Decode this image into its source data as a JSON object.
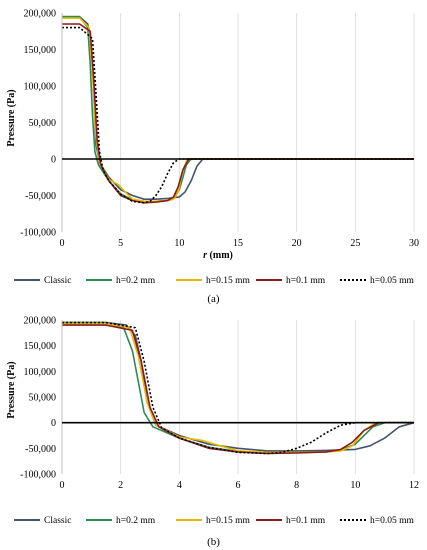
{
  "legend": [
    {
      "name": "Classic",
      "color": "#44546a",
      "dash": ""
    },
    {
      "name": "h=0.2 mm",
      "color": "#2e8b57",
      "dash": ""
    },
    {
      "name": "h=0.15 mm",
      "color": "#e6b800",
      "dash": ""
    },
    {
      "name": "h=0.1 mm",
      "color": "#8b1a1a",
      "dash": ""
    },
    {
      "name": "h=0.05 mm",
      "color": "#000000",
      "dash": "2,2"
    }
  ],
  "chart_data": [
    {
      "type": "line",
      "panel_label": "(a)",
      "ylabel": "Pressure (Pa)",
      "xlabel": "r (mm)",
      "xlim": [
        0,
        30
      ],
      "ylim": [
        -100000,
        200000
      ],
      "x_ticks": [
        0,
        5,
        10,
        15,
        20,
        25,
        30
      ],
      "y_ticks": [
        200000,
        150000,
        100000,
        50000,
        0,
        -50000,
        -100000
      ],
      "y_tick_labels": [
        "200,000",
        "150,000",
        "100,000",
        "50,000",
        "0",
        "-50,000",
        "-100,000"
      ],
      "grid": "vertical",
      "legend_position": "bottom",
      "series": [
        {
          "name": "Classic",
          "x": [
            0,
            1.5,
            2.2,
            2.5,
            2.7,
            2.9,
            3.2,
            4,
            5,
            6,
            7,
            8,
            9,
            10,
            10.5,
            11,
            11.5,
            12,
            13,
            30
          ],
          "y": [
            195000,
            195000,
            185000,
            150000,
            90000,
            20000,
            -5000,
            -25000,
            -42000,
            -50000,
            -55000,
            -55000,
            -54000,
            -52000,
            -45000,
            -30000,
            -10000,
            0,
            0,
            0
          ]
        },
        {
          "name": "h=0.2 mm",
          "x": [
            0,
            1.5,
            2.2,
            2.4,
            2.6,
            2.8,
            3.1,
            4,
            5,
            6,
            7,
            8,
            9,
            9.5,
            10,
            10.3,
            10.6,
            11,
            30
          ],
          "y": [
            195000,
            195000,
            180000,
            130000,
            60000,
            10000,
            -8000,
            -30000,
            -48000,
            -56000,
            -58000,
            -58000,
            -57000,
            -53000,
            -42000,
            -25000,
            -8000,
            0,
            0
          ]
        },
        {
          "name": "h=0.15 mm",
          "x": [
            0,
            1.5,
            2.3,
            2.6,
            2.9,
            3.2,
            4,
            4.8,
            5.2,
            6,
            7,
            8,
            9,
            9.5,
            9.9,
            10.3,
            10.7,
            30
          ],
          "y": [
            193000,
            193000,
            180000,
            120000,
            30000,
            -5000,
            -28000,
            -35000,
            -42000,
            -55000,
            -58000,
            -58000,
            -57000,
            -55000,
            -45000,
            -15000,
            0,
            0
          ]
        },
        {
          "name": "h=0.1 mm",
          "x": [
            0,
            1.5,
            2.4,
            2.7,
            3.0,
            3.3,
            4,
            5,
            6,
            7,
            8,
            9,
            9.5,
            9.9,
            10.3,
            10.8,
            30
          ],
          "y": [
            185000,
            185000,
            175000,
            110000,
            25000,
            -8000,
            -30000,
            -50000,
            -57000,
            -60000,
            -59000,
            -57000,
            -52000,
            -38000,
            -15000,
            0,
            0
          ]
        },
        {
          "name": "h=0.05 mm",
          "x": [
            0,
            1.5,
            2.6,
            2.9,
            3.2,
            3.5,
            4,
            5,
            6,
            7,
            7.5,
            8,
            8.5,
            9,
            9.5,
            10,
            30
          ],
          "y": [
            180000,
            180000,
            165000,
            90000,
            10000,
            -15000,
            -30000,
            -48000,
            -58000,
            -60000,
            -58000,
            -50000,
            -38000,
            -20000,
            -5000,
            0,
            0
          ]
        }
      ]
    },
    {
      "type": "line",
      "panel_label": "(b)",
      "ylabel": "Pressure (Pa)",
      "xlabel": "",
      "xlim": [
        0,
        12
      ],
      "ylim": [
        -100000,
        200000
      ],
      "x_ticks": [
        0,
        2,
        4,
        6,
        8,
        10,
        12
      ],
      "y_ticks": [
        200000,
        150000,
        100000,
        50000,
        0,
        -50000,
        -100000
      ],
      "y_tick_labels": [
        "200,000",
        "150,000",
        "100,000",
        "50,000",
        "0",
        "-50,000",
        "-100,000"
      ],
      "grid": "vertical",
      "legend_position": "bottom",
      "series": [
        {
          "name": "Classic",
          "x": [
            0,
            1.5,
            2.2,
            2.5,
            2.7,
            2.9,
            3.2,
            4,
            5,
            6,
            7,
            8,
            9,
            10,
            10.5,
            11,
            11.5,
            12
          ],
          "y": [
            195000,
            195000,
            190000,
            170000,
            120000,
            40000,
            -5000,
            -25000,
            -42000,
            -50000,
            -55000,
            -55000,
            -54000,
            -52000,
            -45000,
            -30000,
            -8000,
            0
          ]
        },
        {
          "name": "h=0.2 mm",
          "x": [
            0,
            1.5,
            2.1,
            2.4,
            2.6,
            2.8,
            3.1,
            4,
            5,
            6,
            7,
            8,
            9,
            9.5,
            10,
            10.3,
            10.6,
            11,
            12
          ],
          "y": [
            195000,
            195000,
            185000,
            140000,
            80000,
            20000,
            -8000,
            -30000,
            -48000,
            -56000,
            -58000,
            -58000,
            -57000,
            -53000,
            -42000,
            -25000,
            -8000,
            0,
            0
          ]
        },
        {
          "name": "h=0.15 mm",
          "x": [
            0,
            1.5,
            2.3,
            2.6,
            2.9,
            3.2,
            4,
            4.8,
            5.2,
            6,
            7,
            8,
            9,
            9.5,
            9.9,
            10.3,
            10.7,
            12
          ],
          "y": [
            193000,
            193000,
            185000,
            130000,
            40000,
            -5000,
            -28000,
            -35000,
            -42000,
            -55000,
            -58000,
            -58000,
            -57000,
            -55000,
            -45000,
            -15000,
            0,
            0
          ]
        },
        {
          "name": "h=0.1 mm",
          "x": [
            0,
            1.5,
            2.4,
            2.7,
            3.0,
            3.3,
            4,
            5,
            6,
            7,
            8,
            9,
            9.5,
            9.9,
            10.3,
            10.8,
            12
          ],
          "y": [
            190000,
            190000,
            180000,
            120000,
            30000,
            -8000,
            -30000,
            -50000,
            -57000,
            -60000,
            -59000,
            -57000,
            -52000,
            -38000,
            -15000,
            0,
            0
          ]
        },
        {
          "name": "h=0.05 mm",
          "x": [
            0,
            1.5,
            2.5,
            2.8,
            3.1,
            3.4,
            4,
            5,
            6,
            7,
            7.5,
            8,
            8.5,
            9,
            9.5,
            10,
            12
          ],
          "y": [
            195000,
            195000,
            185000,
            120000,
            30000,
            -10000,
            -30000,
            -48000,
            -58000,
            -60000,
            -58000,
            -50000,
            -38000,
            -20000,
            -5000,
            0,
            0
          ]
        }
      ]
    }
  ]
}
